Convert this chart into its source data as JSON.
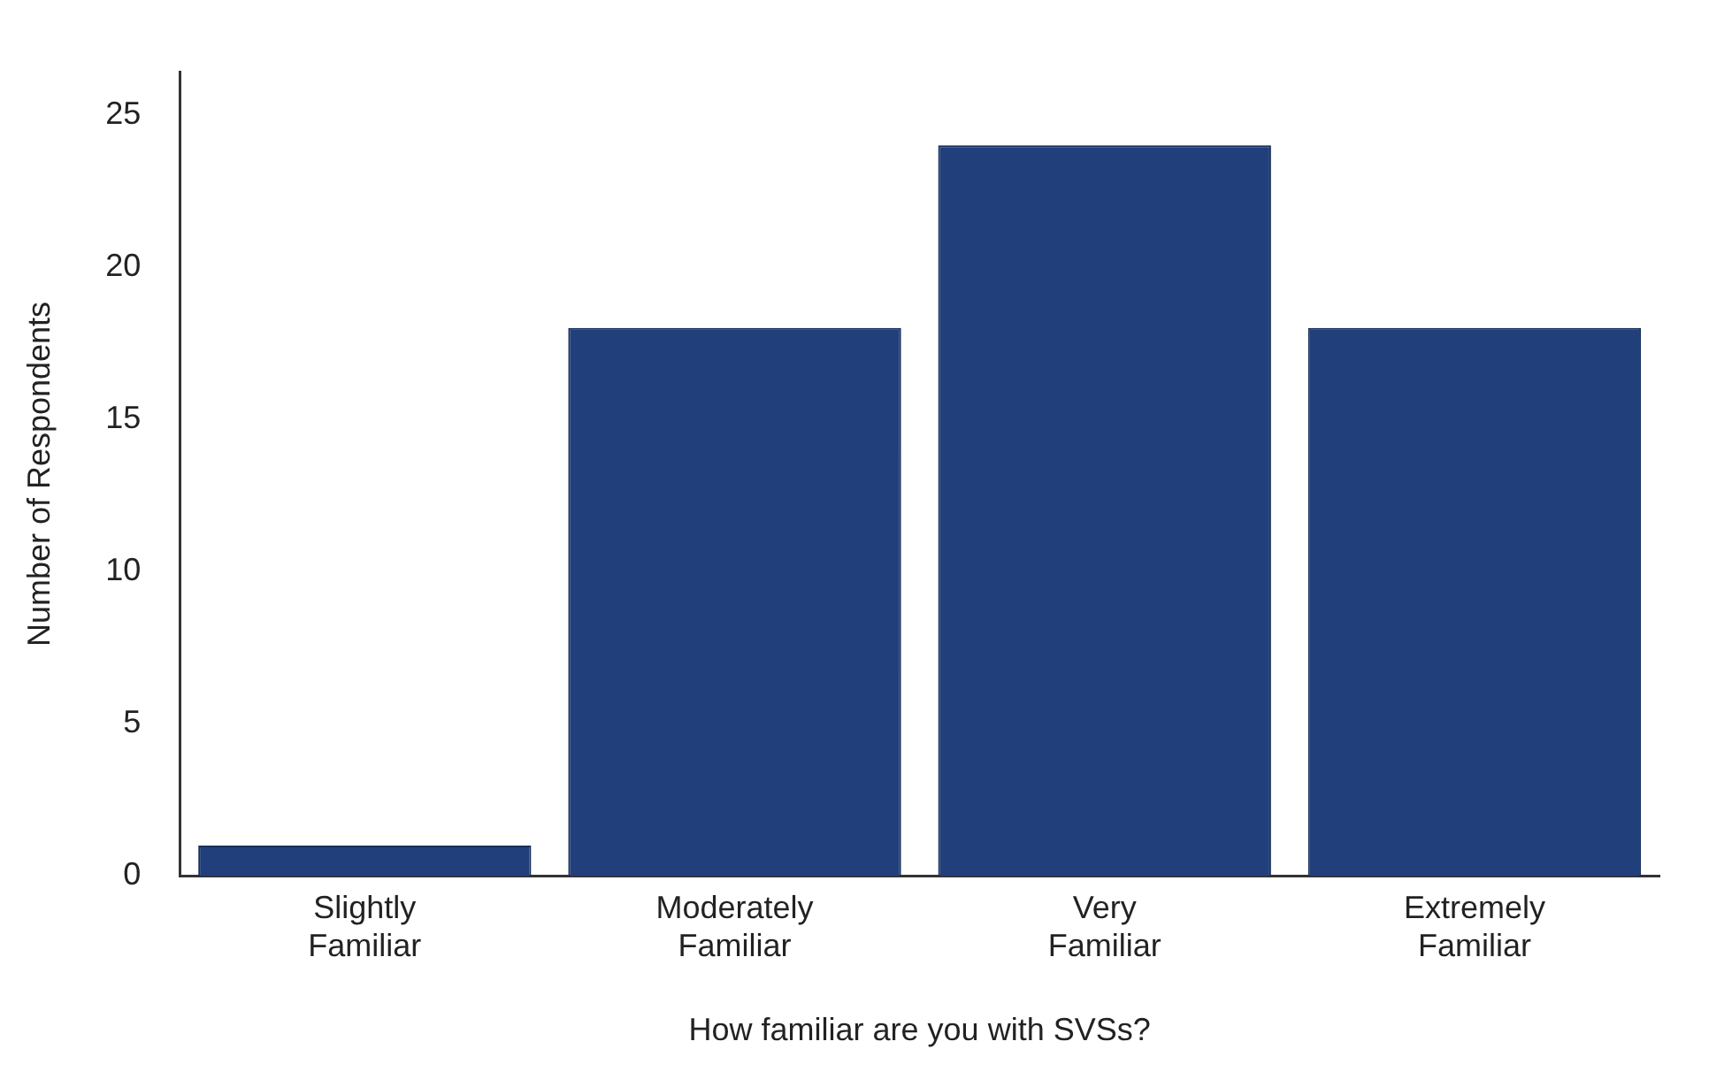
{
  "chart_data": {
    "type": "bar",
    "xlabel": "How familiar are you with SVSs?",
    "ylabel": "Number of Respondents",
    "categories": [
      "Slightly Familiar",
      "Moderately Familiar",
      "Very Familiar",
      "Extremely Familiar"
    ],
    "values": [
      1,
      18,
      24,
      18
    ],
    "color": "#213f7a",
    "ylim": [
      0,
      26.4
    ],
    "yticks": [
      0,
      5,
      10,
      15,
      20,
      25
    ],
    "grid": false,
    "legend": false
  }
}
